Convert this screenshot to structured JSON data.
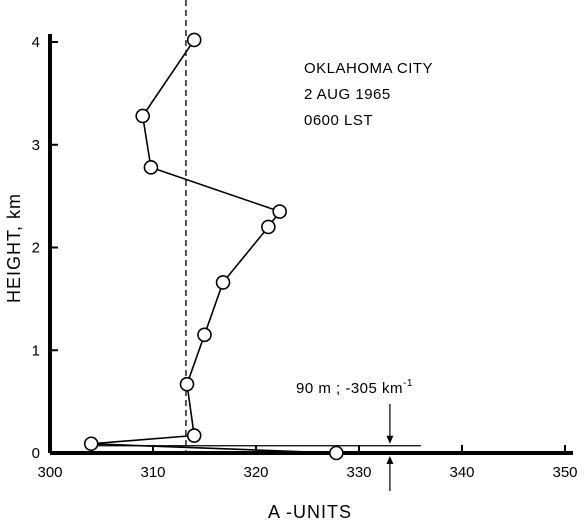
{
  "chart_data": {
    "type": "line",
    "xlabel": "A -UNITS",
    "ylabel": "HEIGHT, km",
    "xlim": [
      300,
      350
    ],
    "ylim": [
      0,
      4
    ],
    "xticks": [
      300,
      310,
      320,
      330,
      340,
      350
    ],
    "yticks": [
      0,
      1,
      2,
      3,
      4
    ],
    "grid": false,
    "title_lines": [
      "OKLAHOMA CITY",
      "2 AUG 1965",
      "0600 LST"
    ],
    "series": [
      {
        "points": [
          {
            "x": 314.0,
            "y": 4.02
          },
          {
            "x": 309.0,
            "y": 3.28
          },
          {
            "x": 309.8,
            "y": 2.78
          },
          {
            "x": 322.3,
            "y": 2.35
          },
          {
            "x": 321.2,
            "y": 2.2
          },
          {
            "x": 316.8,
            "y": 1.66
          },
          {
            "x": 315.0,
            "y": 1.15
          },
          {
            "x": 313.3,
            "y": 0.67
          },
          {
            "x": 314.0,
            "y": 0.17
          },
          {
            "x": 304.0,
            "y": 0.09
          },
          {
            "x": 327.8,
            "y": 0.0
          }
        ]
      }
    ],
    "reference_line": {
      "x": 313.2,
      "style": "dashed"
    },
    "annotation": {
      "label_main": "90 m ; -305 km",
      "label_sup": "-1",
      "x_start": 304.0,
      "x_end": 336.0,
      "y": 0.09,
      "arrow_x": 333.0
    }
  }
}
